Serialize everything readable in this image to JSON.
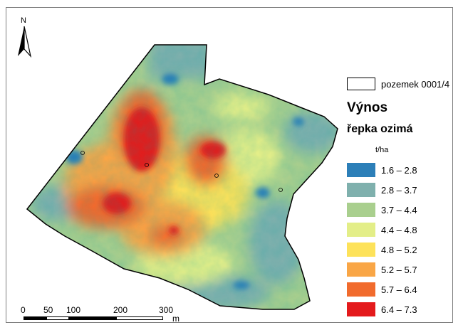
{
  "map": {
    "north_label": "N",
    "parcel_label": "pozemek 0001/4",
    "title": "Výnos",
    "crop": "řepka ozimá",
    "unit": "t/ha",
    "classes": [
      {
        "label": "1.6 – 2.8",
        "color": "#2c7fb8"
      },
      {
        "label": "2.8 – 3.7",
        "color": "#7fb0ad"
      },
      {
        "label": "3.7 – 4.4",
        "color": "#a9cf8e"
      },
      {
        "label": "4.4 – 4.8",
        "color": "#e3ee88"
      },
      {
        "label": "4.8 – 5.2",
        "color": "#fde25a"
      },
      {
        "label": "5.2 – 5.7",
        "color": "#f9a646"
      },
      {
        "label": "5.7 – 6.4",
        "color": "#f16b2d"
      },
      {
        "label": "6.4 – 7.3",
        "color": "#e41a1c"
      }
    ],
    "scale": {
      "ticks": [
        "0",
        "50",
        "100",
        "200",
        "300"
      ],
      "unit": "m"
    }
  }
}
